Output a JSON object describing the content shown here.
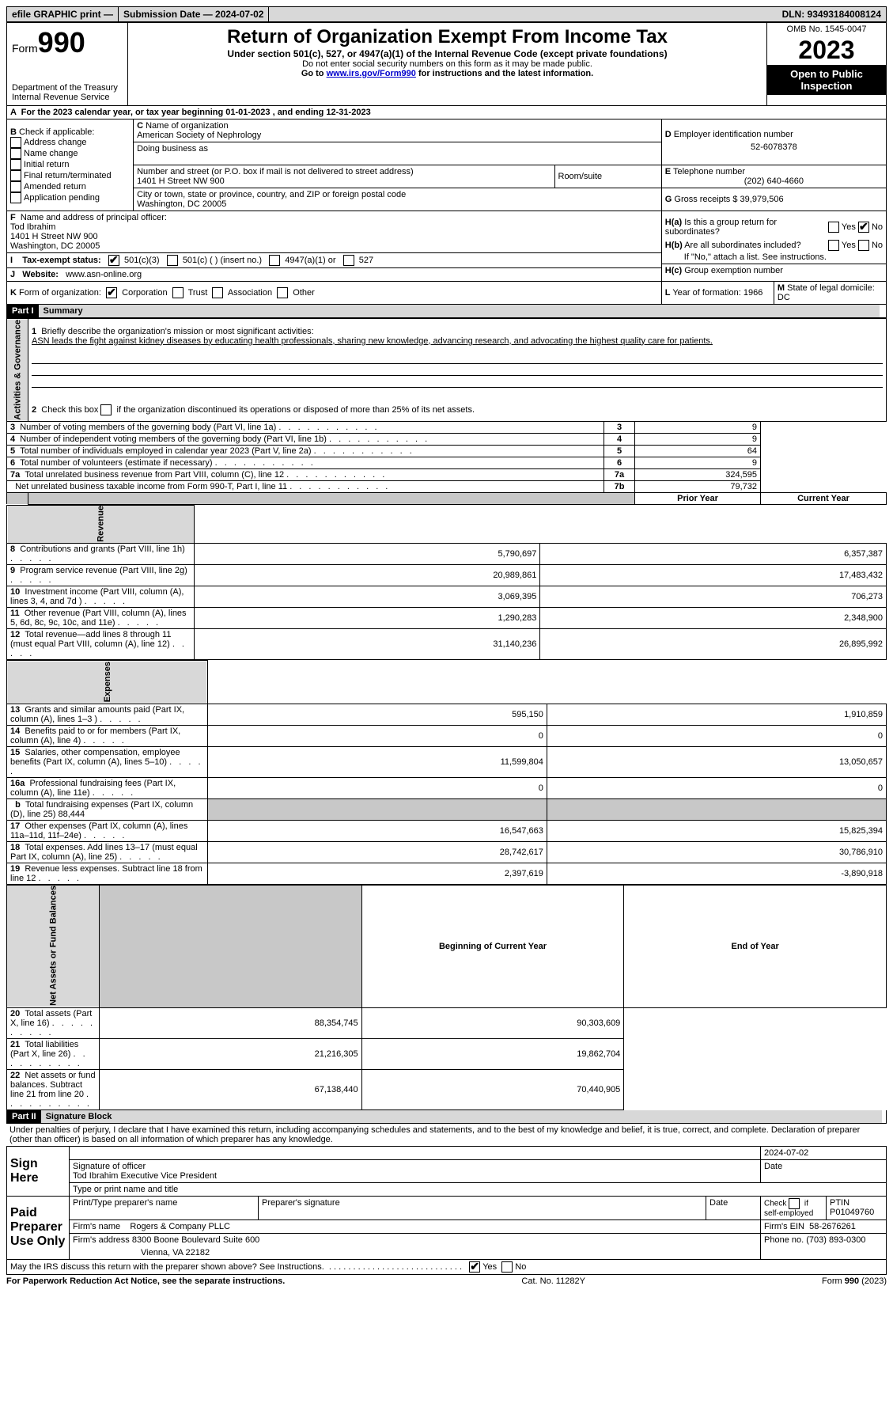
{
  "topbar": {
    "efile": "efile GRAPHIC print —",
    "subdate_label": "Submission Date — 2024-07-02",
    "dln_label": "DLN: 93493184008124"
  },
  "header": {
    "form_word": "Form",
    "form_num": "990",
    "dept": "Department of the Treasury",
    "irs": "Internal Revenue Service",
    "title": "Return of Organization Exempt From Income Tax",
    "line1": "Under section 501(c), 527, or 4947(a)(1) of the Internal Revenue Code (except private foundations)",
    "line2": "Do not enter social security numbers on this form as it may be made public.",
    "line3_pre": "Go to ",
    "line3_link": "www.irs.gov/Form990",
    "line3_post": " for instructions and the latest information.",
    "omb": "OMB No. 1545-0047",
    "year": "2023",
    "inspect": "Open to Public Inspection"
  },
  "A": {
    "text": "For the 2023 calendar year, or tax year beginning 01-01-2023   , and ending 12-31-2023"
  },
  "B": {
    "label": "Check if applicable:",
    "items": [
      "Address change",
      "Name change",
      "Initial return",
      "Final return/terminated",
      "Amended return",
      "Application pending"
    ]
  },
  "C": {
    "name_label": "Name of organization",
    "name": "American Society of Nephrology",
    "dba_label": "Doing business as",
    "street_label": "Number and street (or P.O. box if mail is not delivered to street address)",
    "street": "1401 H Street NW 900",
    "room_label": "Room/suite",
    "city_label": "City or town, state or province, country, and ZIP or foreign postal code",
    "city": "Washington, DC  20005"
  },
  "D": {
    "label": "Employer identification number",
    "val": "52-6078378"
  },
  "E": {
    "label": "Telephone number",
    "val": "(202) 640-4660"
  },
  "G": {
    "label": "Gross receipts $",
    "val": "39,979,506"
  },
  "F": {
    "label": "Name and address of principal officer:",
    "name": "Tod Ibrahim",
    "addr1": "1401 H Street NW 900",
    "addr2": "Washington, DC  20005"
  },
  "H": {
    "a": "Is this a group return for subordinates?",
    "b": "Are all subordinates included?",
    "b2": "If \"No,\" attach a list. See instructions.",
    "c": "Group exemption number",
    "yes": "Yes",
    "no": "No"
  },
  "I": {
    "label": "Tax-exempt status:",
    "c3": "501(c)(3)",
    "c": "501(c) ( ) (insert no.)",
    "a1": "4947(a)(1) or",
    "527": "527"
  },
  "J": {
    "label": "Website:",
    "val": "www.asn-online.org"
  },
  "K": {
    "label": "Form of organization:",
    "corp": "Corporation",
    "trust": "Trust",
    "assoc": "Association",
    "other": "Other"
  },
  "L": {
    "label": "Year of formation:",
    "val": "1966"
  },
  "M": {
    "label": "State of legal domicile:",
    "val": "DC"
  },
  "part1": {
    "bar": "Part I",
    "title": "Summary"
  },
  "summary": {
    "q1": "Briefly describe the organization's mission or most significant activities:",
    "mission": "ASN leads the fight against kidney diseases by educating health professionals, sharing new knowledge, advancing research, and advocating the highest quality care for patients.",
    "q2": "Check this box     if the organization discontinued its operations or disposed of more than 25% of its net assets.",
    "rows_gov": [
      {
        "n": "3",
        "t": "Number of voting members of the governing body (Part VI, line 1a)",
        "k": "3",
        "v": "9"
      },
      {
        "n": "4",
        "t": "Number of independent voting members of the governing body (Part VI, line 1b)",
        "k": "4",
        "v": "9"
      },
      {
        "n": "5",
        "t": "Total number of individuals employed in calendar year 2023 (Part V, line 2a)",
        "k": "5",
        "v": "64"
      },
      {
        "n": "6",
        "t": "Total number of volunteers (estimate if necessary)",
        "k": "6",
        "v": "9"
      },
      {
        "n": "7a",
        "t": "Total unrelated business revenue from Part VIII, column (C), line 12",
        "k": "7a",
        "v": "324,595"
      },
      {
        "n": "",
        "t": "Net unrelated business taxable income from Form 990-T, Part I, line 11",
        "k": "7b",
        "v": "79,732"
      }
    ],
    "col_prior": "Prior Year",
    "col_curr": "Current Year",
    "rows_rev": [
      {
        "n": "8",
        "t": "Contributions and grants (Part VIII, line 1h)",
        "p": "5,790,697",
        "c": "6,357,387"
      },
      {
        "n": "9",
        "t": "Program service revenue (Part VIII, line 2g)",
        "p": "20,989,861",
        "c": "17,483,432"
      },
      {
        "n": "10",
        "t": "Investment income (Part VIII, column (A), lines 3, 4, and 7d )",
        "p": "3,069,395",
        "c": "706,273"
      },
      {
        "n": "11",
        "t": "Other revenue (Part VIII, column (A), lines 5, 6d, 8c, 9c, 10c, and 11e)",
        "p": "1,290,283",
        "c": "2,348,900"
      },
      {
        "n": "12",
        "t": "Total revenue—add lines 8 through 11 (must equal Part VIII, column (A), line 12)",
        "p": "31,140,236",
        "c": "26,895,992"
      }
    ],
    "rows_exp": [
      {
        "n": "13",
        "t": "Grants and similar amounts paid (Part IX, column (A), lines 1–3 )",
        "p": "595,150",
        "c": "1,910,859"
      },
      {
        "n": "14",
        "t": "Benefits paid to or for members (Part IX, column (A), line 4)",
        "p": "0",
        "c": "0"
      },
      {
        "n": "15",
        "t": "Salaries, other compensation, employee benefits (Part IX, column (A), lines 5–10)",
        "p": "11,599,804",
        "c": "13,050,657"
      },
      {
        "n": "16a",
        "t": "Professional fundraising fees (Part IX, column (A), line 11e)",
        "p": "0",
        "c": "0"
      },
      {
        "n": "b",
        "t": "Total fundraising expenses (Part IX, column (D), line 25) 88,444",
        "p": "",
        "c": "",
        "gray": true
      },
      {
        "n": "17",
        "t": "Other expenses (Part IX, column (A), lines 11a–11d, 11f–24e)",
        "p": "16,547,663",
        "c": "15,825,394"
      },
      {
        "n": "18",
        "t": "Total expenses. Add lines 13–17 (must equal Part IX, column (A), line 25)",
        "p": "28,742,617",
        "c": "30,786,910"
      },
      {
        "n": "19",
        "t": "Revenue less expenses. Subtract line 18 from line 12",
        "p": "2,397,619",
        "c": "-3,890,918"
      }
    ],
    "col_beg": "Beginning of Current Year",
    "col_end": "End of Year",
    "rows_net": [
      {
        "n": "20",
        "t": "Total assets (Part X, line 16)",
        "p": "88,354,745",
        "c": "90,303,609"
      },
      {
        "n": "21",
        "t": "Total liabilities (Part X, line 26)",
        "p": "21,216,305",
        "c": "19,862,704"
      },
      {
        "n": "22",
        "t": "Net assets or fund balances. Subtract line 21 from line 20",
        "p": "67,138,440",
        "c": "70,440,905"
      }
    ]
  },
  "vlabels": {
    "gov": "Activities & Governance",
    "rev": "Revenue",
    "exp": "Expenses",
    "net": "Net Assets or Fund Balances"
  },
  "part2": {
    "bar": "Part II",
    "title": "Signature Block"
  },
  "sig": {
    "perjury": "Under penalties of perjury, I declare that I have examined this return, including accompanying schedules and statements, and to the best of my knowledge and belief, it is true, correct, and complete. Declaration of preparer (other than officer) is based on all information of which preparer has any knowledge.",
    "signhere": "Sign Here",
    "sig_officer": "Signature of officer",
    "sig_date": "2024-07-02",
    "officer_name": "Tod Ibrahim  Executive Vice President",
    "type_name": "Type or print name and title",
    "paid": "Paid Preparer Use Only",
    "prep_name_label": "Print/Type preparer's name",
    "prep_sig_label": "Preparer's signature",
    "date_label": "Date",
    "self_emp": "Check       if self-employed",
    "ptin_label": "PTIN",
    "ptin": "P01049760",
    "firm_name_label": "Firm's name",
    "firm_name": "Rogers & Company PLLC",
    "firm_ein_label": "Firm's EIN",
    "firm_ein": "58-2676261",
    "firm_addr_label": "Firm's address",
    "firm_addr1": "8300 Boone Boulevard Suite 600",
    "firm_addr2": "Vienna, VA  22182",
    "phone_label": "Phone no.",
    "phone": "(703) 893-0300",
    "discuss": "May the IRS discuss this return with the preparer shown above? See Instructions."
  },
  "footer": {
    "left": "For Paperwork Reduction Act Notice, see the separate instructions.",
    "mid": "Cat. No. 11282Y",
    "right": "Form 990 (2023)"
  }
}
